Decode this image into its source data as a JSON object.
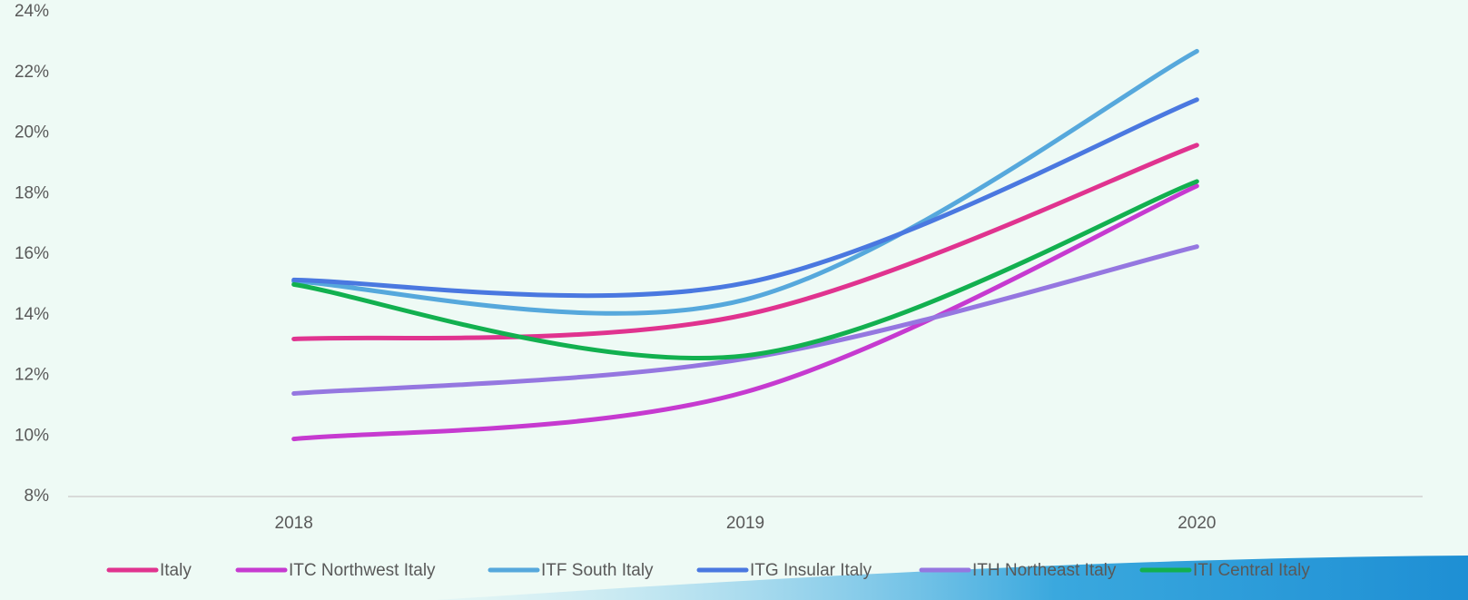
{
  "chart_data": {
    "type": "line",
    "categories": [
      "2018",
      "2019",
      "2020"
    ],
    "series": [
      {
        "name": "Italy",
        "color": "#e0338f",
        "values": [
          13.2,
          14.0,
          19.6
        ]
      },
      {
        "name": "ITC Northwest Italy",
        "color": "#c63ad0",
        "values": [
          9.9,
          11.45,
          18.25
        ]
      },
      {
        "name": "ITF South Italy",
        "color": "#56a8dc",
        "values": [
          15.1,
          14.5,
          22.7
        ]
      },
      {
        "name": "ITG Insular Italy",
        "color": "#4a78e0",
        "values": [
          15.15,
          15.05,
          21.1
        ]
      },
      {
        "name": "ITH Northeast Italy",
        "color": "#9577e0",
        "values": [
          11.4,
          12.55,
          16.25
        ]
      },
      {
        "name": "ITI Central Italy",
        "color": "#12b04f",
        "values": [
          15.0,
          12.65,
          18.4
        ]
      }
    ],
    "ylim": [
      8,
      24
    ],
    "yticks": [
      {
        "value": 8,
        "label": "8%"
      },
      {
        "value": 10,
        "label": "10%"
      },
      {
        "value": 12,
        "label": "12%"
      },
      {
        "value": 14,
        "label": "14%"
      },
      {
        "value": 16,
        "label": "16%"
      },
      {
        "value": 18,
        "label": "18%"
      },
      {
        "value": 20,
        "label": "20%"
      },
      {
        "value": 22,
        "label": "22%"
      },
      {
        "value": 24,
        "label": "24%"
      }
    ],
    "legend": "bottom"
  }
}
